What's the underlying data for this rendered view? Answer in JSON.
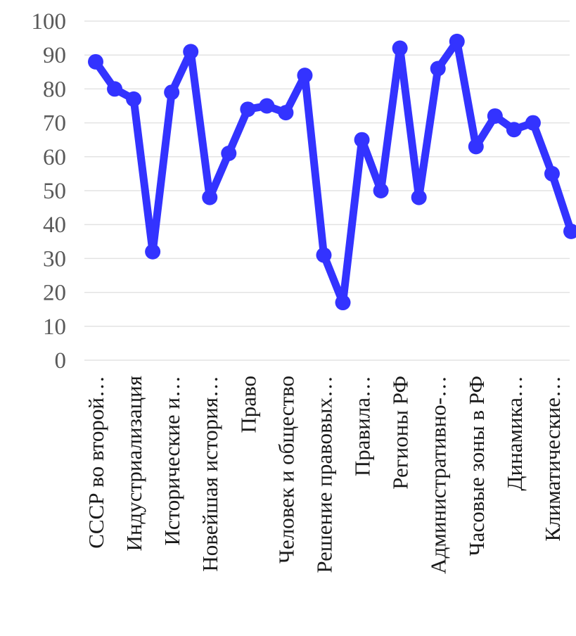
{
  "chart_data": {
    "type": "line",
    "title": "",
    "xlabel": "",
    "ylabel": "",
    "ylim": [
      0,
      100
    ],
    "yticks": [
      0,
      10,
      20,
      30,
      40,
      50,
      60,
      70,
      80,
      90,
      100
    ],
    "grid": true,
    "legend": "none",
    "categories": [
      "СССР во второй…",
      "",
      "Индустриализация",
      "",
      "Исторические и…",
      "",
      "Новейшая история…",
      "",
      "Право",
      "",
      "Человек и общество",
      "",
      "Решение правовых…",
      "",
      "Правила…",
      "",
      "Регионы РФ",
      "",
      "Административно-…",
      "",
      "Часовые зоны в РФ",
      "",
      "Динамика…",
      "",
      "Климатические…",
      ""
    ],
    "series": [
      {
        "color": "#3333ff",
        "values": [
          88,
          80,
          77,
          32,
          79,
          91,
          48,
          61,
          74,
          75,
          73,
          84,
          31,
          17,
          65,
          50,
          92,
          48,
          86,
          94,
          63,
          72,
          68,
          70,
          55,
          38
        ]
      }
    ]
  }
}
